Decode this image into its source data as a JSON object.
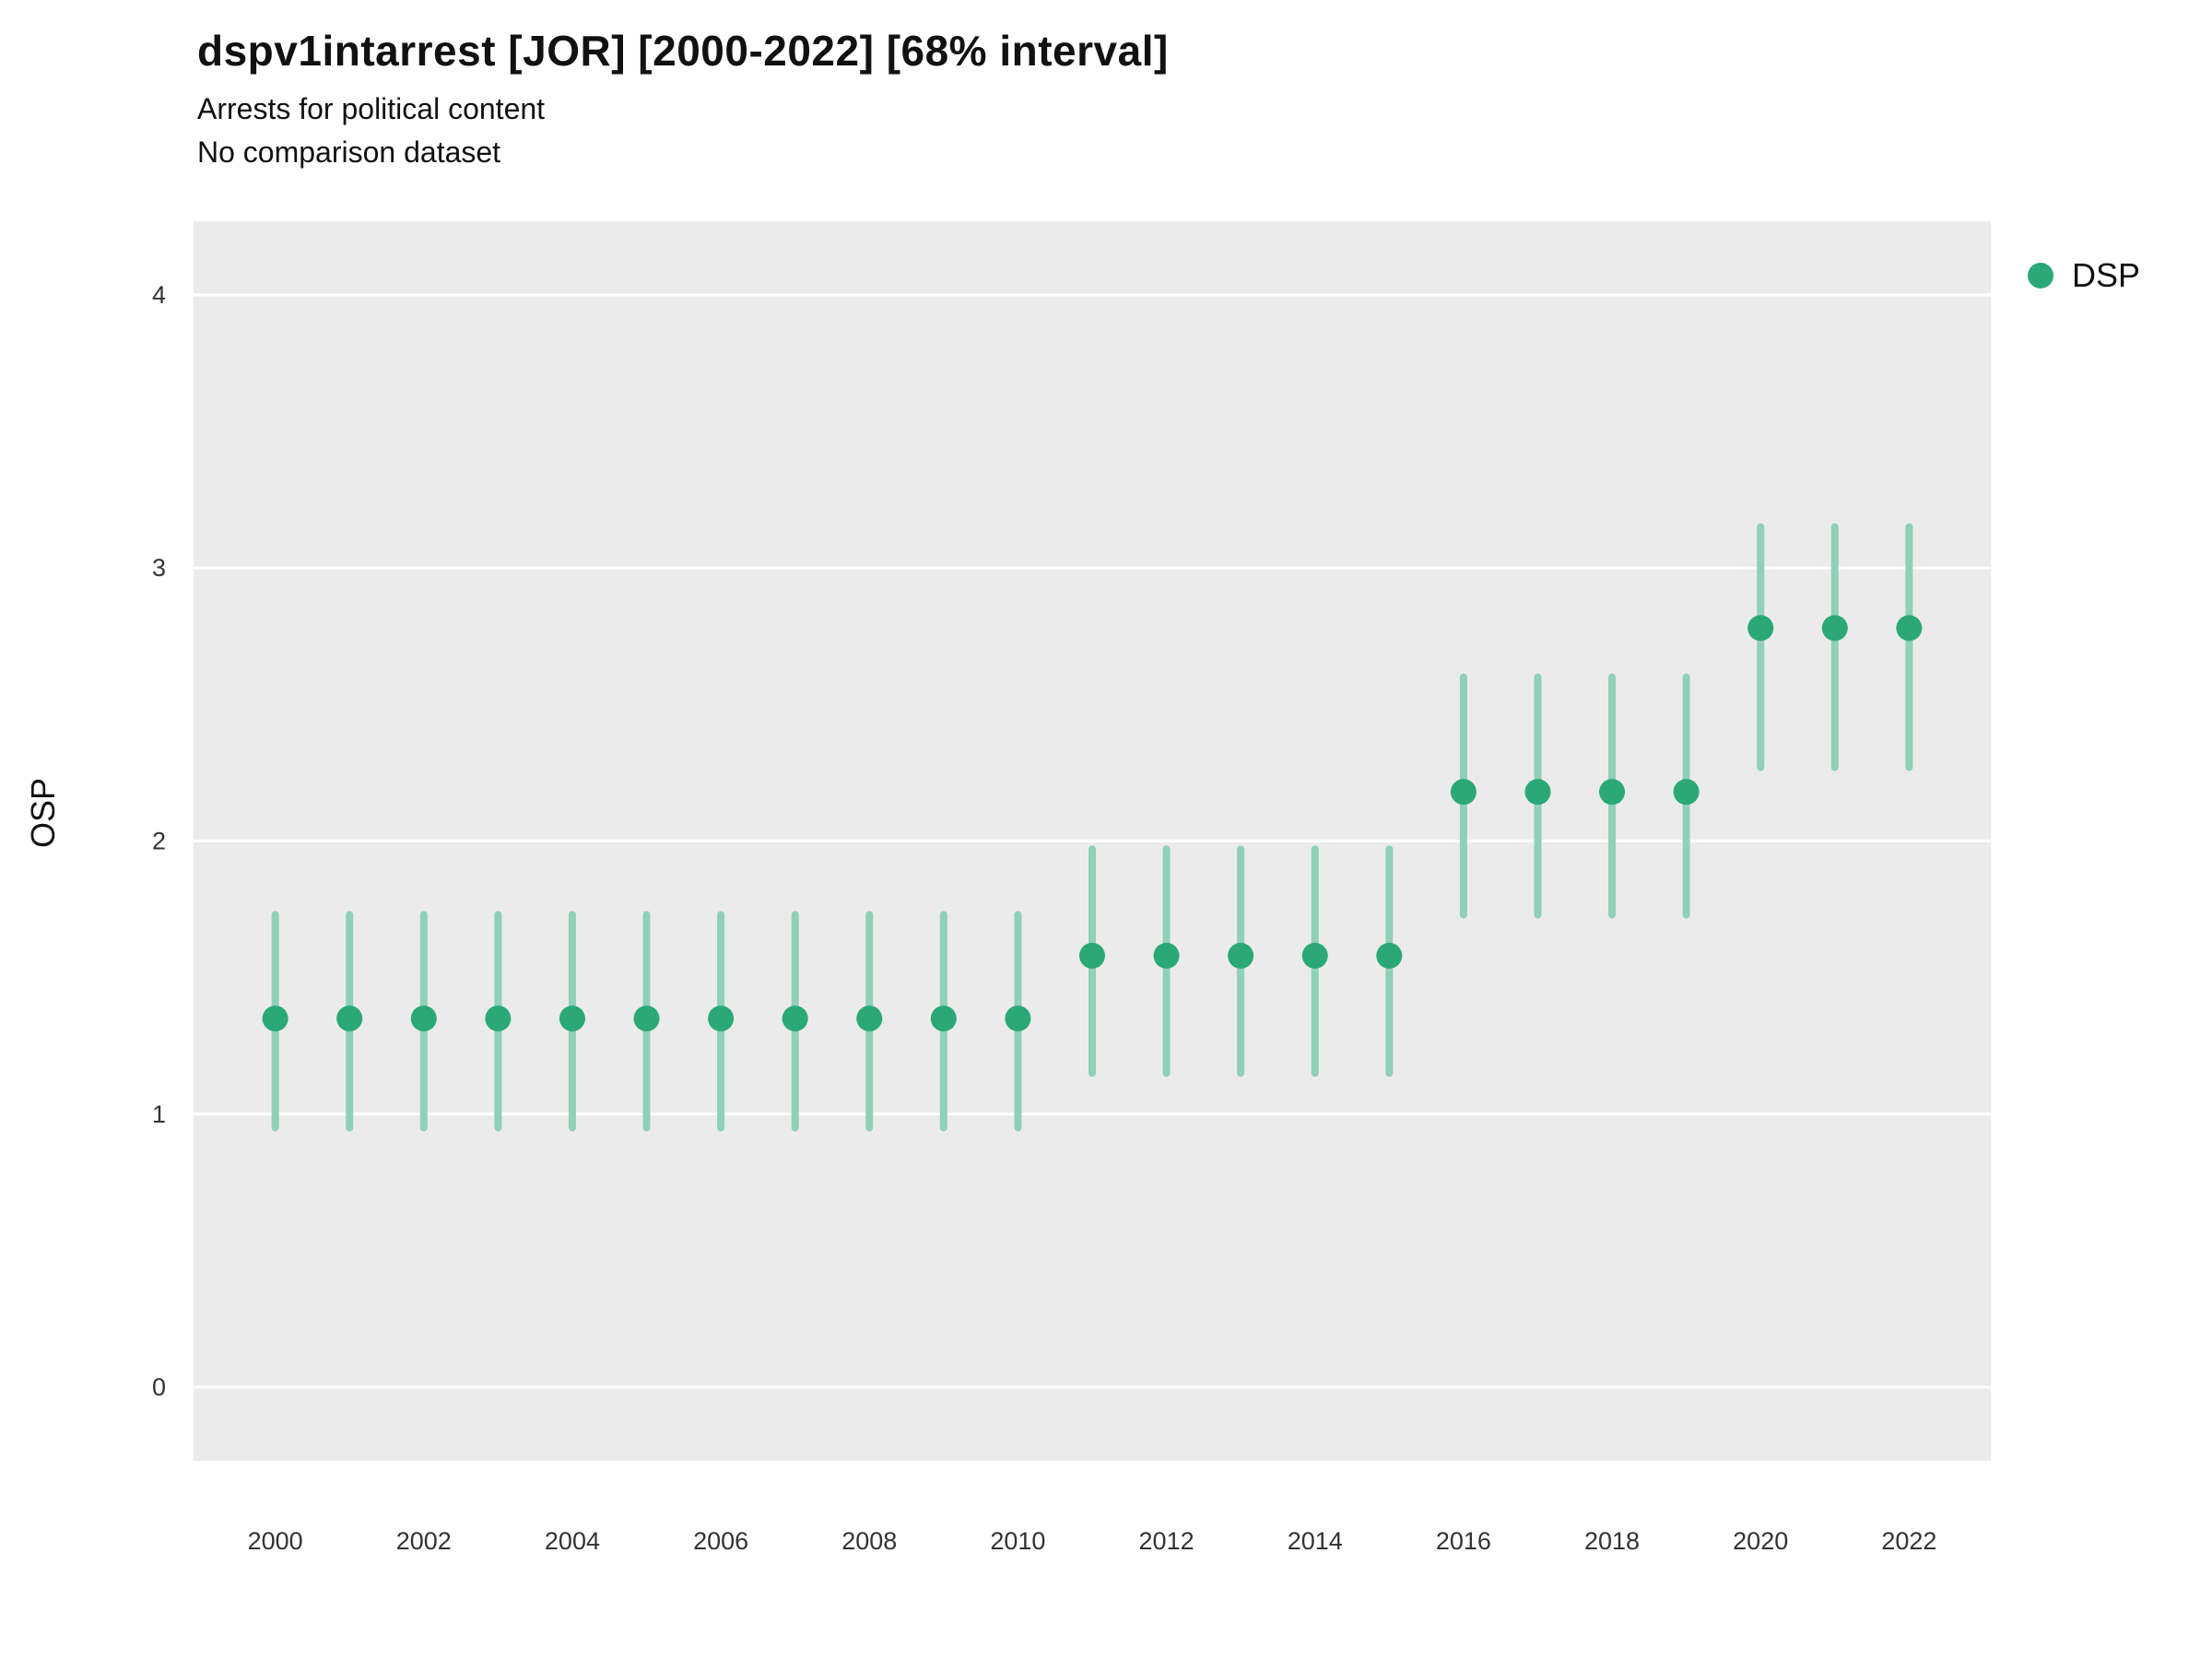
{
  "header": {
    "title": "dspv1intarrest [JOR] [2000-2022] [68% interval]",
    "subtitle": "Arrests for political content",
    "subtitle2": "No comparison dataset"
  },
  "legend": {
    "label": "DSP"
  },
  "chart_data": {
    "type": "scatter",
    "title": "dspv1intarrest [JOR] [2000-2022] [68% interval]",
    "subtitle": "Arrests for political content",
    "subtitle2": "No comparison dataset",
    "xlabel": "",
    "ylabel": "OSP",
    "x": [
      2000,
      2001,
      2002,
      2003,
      2004,
      2005,
      2006,
      2007,
      2008,
      2009,
      2010,
      2011,
      2012,
      2013,
      2014,
      2015,
      2016,
      2017,
      2018,
      2019,
      2020,
      2021,
      2022
    ],
    "series": [
      {
        "name": "DSP",
        "values": [
          1.35,
          1.35,
          1.35,
          1.35,
          1.35,
          1.35,
          1.35,
          1.35,
          1.35,
          1.35,
          1.35,
          1.58,
          1.58,
          1.58,
          1.58,
          1.58,
          2.18,
          2.18,
          2.18,
          2.18,
          2.78,
          2.78,
          2.78
        ],
        "lower": [
          0.95,
          0.95,
          0.95,
          0.95,
          0.95,
          0.95,
          0.95,
          0.95,
          0.95,
          0.95,
          0.95,
          1.15,
          1.15,
          1.15,
          1.15,
          1.15,
          1.73,
          1.73,
          1.73,
          1.73,
          2.27,
          2.27,
          2.27
        ],
        "upper": [
          1.73,
          1.73,
          1.73,
          1.73,
          1.73,
          1.73,
          1.73,
          1.73,
          1.73,
          1.73,
          1.73,
          1.97,
          1.97,
          1.97,
          1.97,
          1.97,
          2.6,
          2.6,
          2.6,
          2.6,
          3.15,
          3.15,
          3.15
        ]
      }
    ],
    "interval_label": "68% interval",
    "xlim": [
      1998.9,
      2023.1
    ],
    "ylim": [
      -0.27,
      4.27
    ],
    "yticks": [
      0,
      1,
      2,
      3,
      4
    ],
    "xticks": [
      2000,
      2002,
      2004,
      2006,
      2008,
      2010,
      2012,
      2014,
      2016,
      2018,
      2020,
      2022
    ],
    "grid": "major-horizontal",
    "legend_position": "right-top",
    "colors": {
      "point": "#2aa876",
      "interval": "#8fd0b8",
      "panel": "#ebebeb",
      "grid": "#ffffff",
      "tick_text": "#333333"
    }
  }
}
